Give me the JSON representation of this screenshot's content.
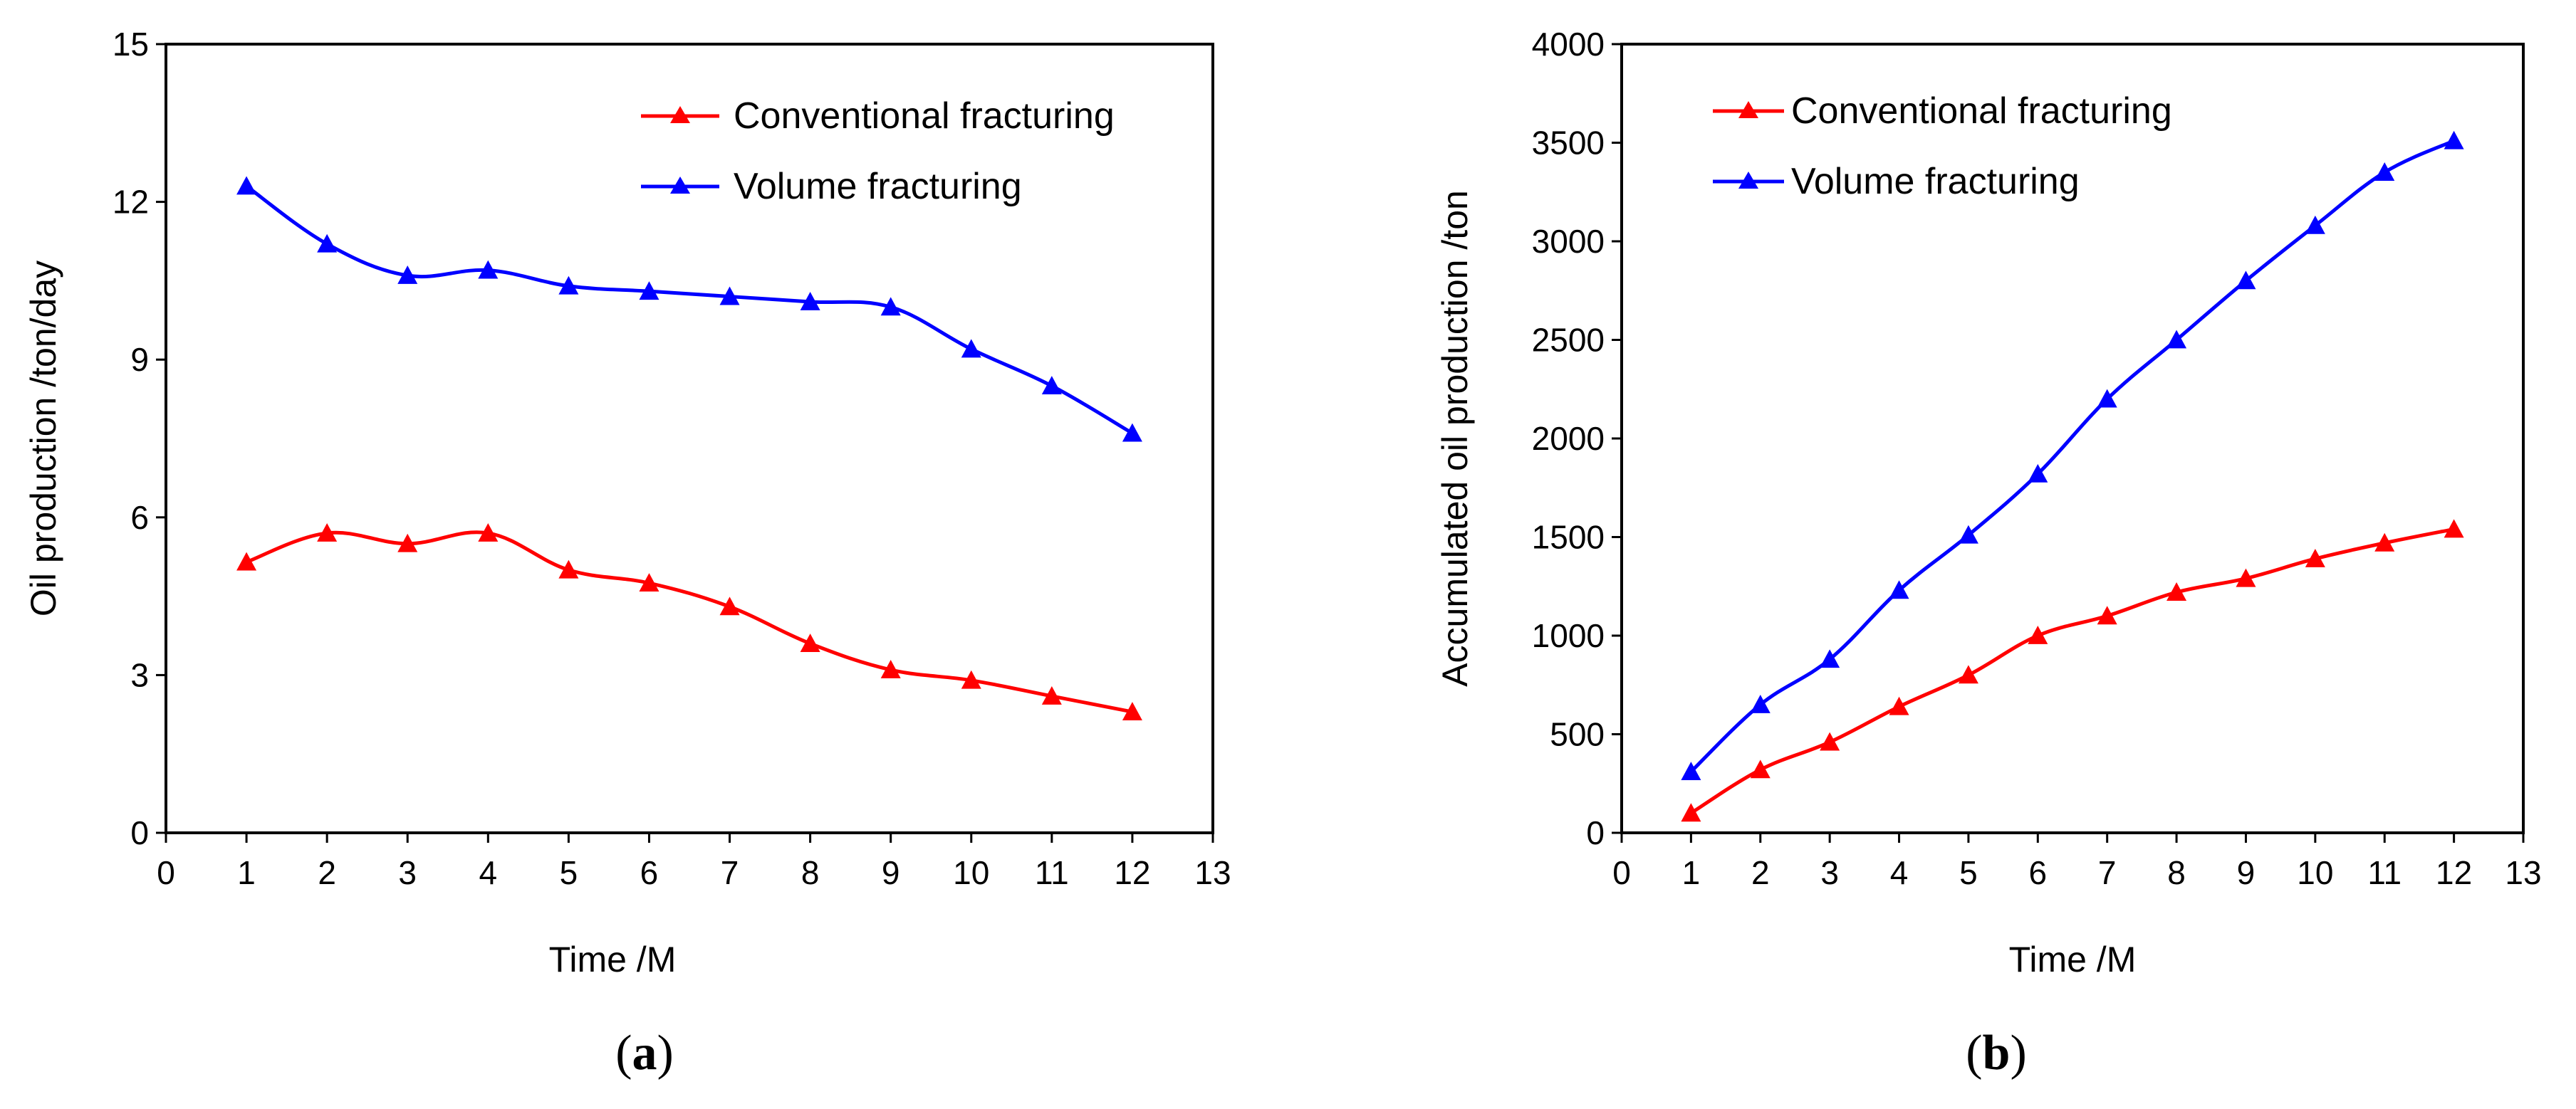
{
  "chart_data": [
    {
      "id": "a",
      "type": "line",
      "panel_label": {
        "open": "(",
        "letter": "a",
        "close": ")"
      },
      "xlabel": "Time /M",
      "ylabel": "Oil production /ton/day",
      "xlim": [
        0,
        13
      ],
      "ylim": [
        0,
        15
      ],
      "xticks": [
        "0",
        "1",
        "2",
        "3",
        "4",
        "5",
        "6",
        "7",
        "8",
        "9",
        "10",
        "11",
        "12",
        "13"
      ],
      "yticks": [
        "0",
        "3",
        "6",
        "9",
        "12",
        "15"
      ],
      "grid": false,
      "legend_position": "top-right",
      "x": [
        1,
        2,
        3,
        4,
        5,
        6,
        7,
        8,
        9,
        10,
        11,
        12
      ],
      "series": [
        {
          "name": "Conventional fracturing",
          "color": "#ff0000",
          "values": [
            5.15,
            5.7,
            5.5,
            5.7,
            5.0,
            4.75,
            4.3,
            3.6,
            3.1,
            2.9,
            2.6,
            2.3
          ]
        },
        {
          "name": "Volume fracturing",
          "color": "#0000ff",
          "values": [
            12.3,
            11.2,
            10.6,
            10.7,
            10.4,
            10.3,
            10.2,
            10.1,
            10.0,
            9.2,
            8.5,
            7.6
          ]
        }
      ]
    },
    {
      "id": "b",
      "type": "line",
      "panel_label": {
        "open": "(",
        "letter": "b",
        "close": ")"
      },
      "xlabel": "Time /M",
      "ylabel": "Accumulated oil production /ton",
      "xlim": [
        0,
        13
      ],
      "ylim": [
        0,
        4000
      ],
      "xticks": [
        "0",
        "1",
        "2",
        "3",
        "4",
        "5",
        "6",
        "7",
        "8",
        "9",
        "10",
        "11",
        "12",
        "13"
      ],
      "yticks": [
        "0",
        "500",
        "1000",
        "1500",
        "2000",
        "2500",
        "3000",
        "3500",
        "4000"
      ],
      "grid": false,
      "legend_position": "top-left",
      "x": [
        1,
        2,
        3,
        4,
        5,
        6,
        7,
        8,
        9,
        10,
        11,
        12
      ],
      "series": [
        {
          "name": "Conventional fracturing",
          "color": "#ff0000",
          "values": [
            100,
            320,
            460,
            640,
            800,
            1000,
            1100,
            1220,
            1290,
            1390,
            1470,
            1540
          ]
        },
        {
          "name": "Volume fracturing",
          "color": "#0000ff",
          "values": [
            310,
            650,
            880,
            1230,
            1510,
            1820,
            2200,
            2500,
            2800,
            3080,
            3350,
            3510
          ]
        }
      ]
    }
  ]
}
